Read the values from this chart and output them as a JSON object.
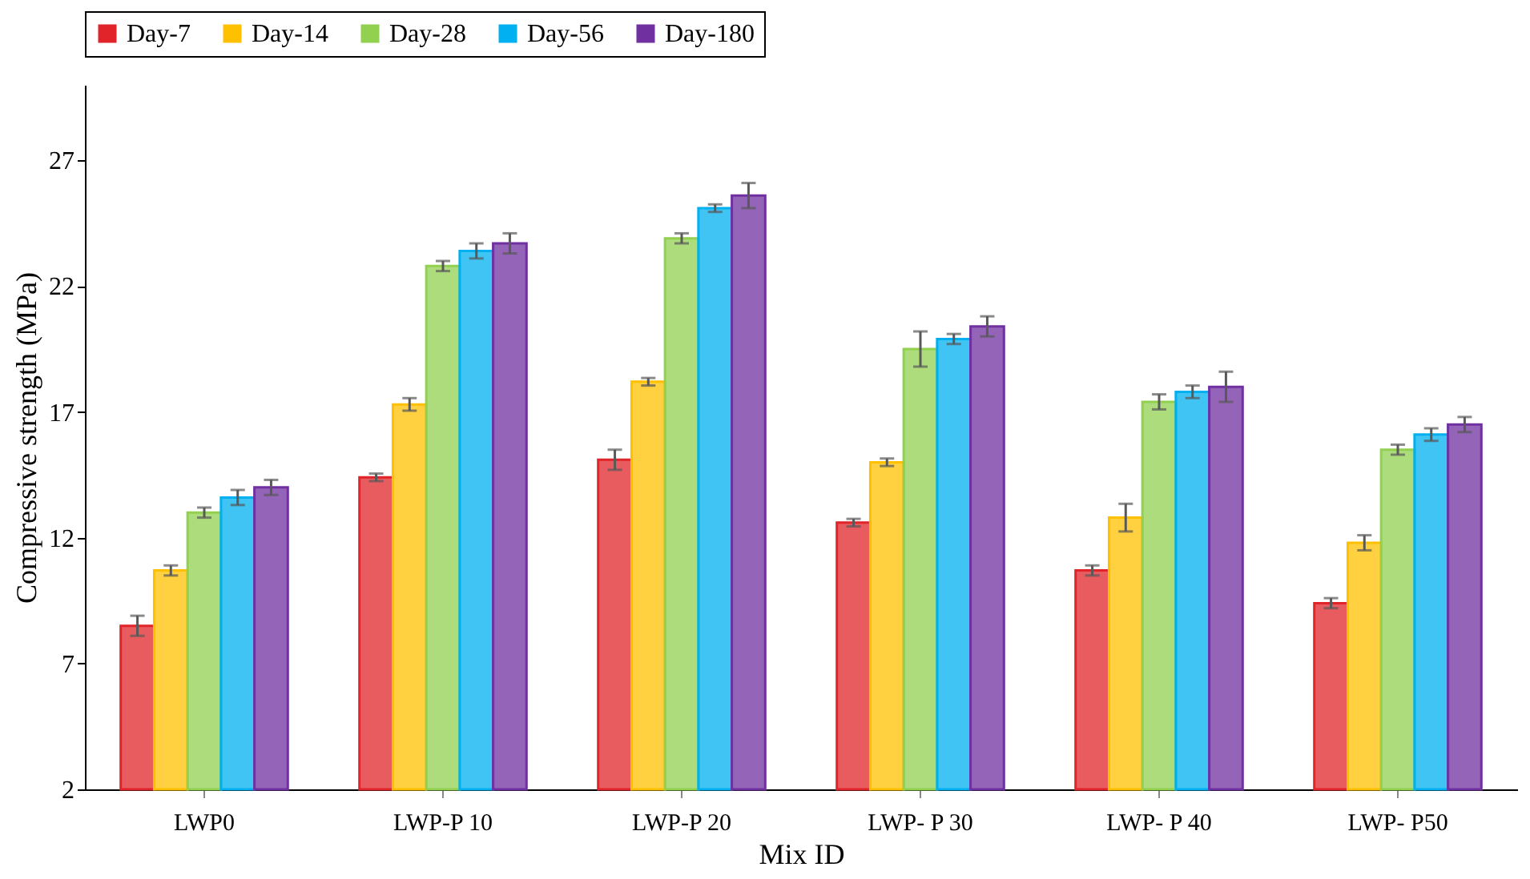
{
  "chart_data": {
    "type": "bar",
    "xlabel": "Mix ID",
    "ylabel": "Compressive strength (MPa)",
    "categories": [
      "LWP0",
      "LWP-P 10",
      "LWP-P 20",
      "LWP- P 30",
      "LWP- P 40",
      "LWP- P50"
    ],
    "series": [
      {
        "name": "Day-7",
        "color": "#e0242a",
        "values": [
          8.5,
          14.4,
          15.1,
          12.6,
          10.7,
          9.4
        ],
        "errors": [
          0.4,
          0.15,
          0.4,
          0.15,
          0.2,
          0.2
        ]
      },
      {
        "name": "Day-14",
        "color": "#ffc000",
        "values": [
          10.7,
          17.3,
          18.2,
          15.0,
          12.8,
          11.8
        ],
        "errors": [
          0.2,
          0.25,
          0.15,
          0.15,
          0.55,
          0.3
        ]
      },
      {
        "name": "Day-28",
        "color": "#92d050",
        "values": [
          13.0,
          22.8,
          23.9,
          19.5,
          17.4,
          15.5
        ],
        "errors": [
          0.2,
          0.2,
          0.2,
          0.7,
          0.3,
          0.2
        ]
      },
      {
        "name": "Day-56",
        "color": "#00b0f0",
        "values": [
          13.6,
          23.4,
          25.1,
          19.9,
          17.8,
          16.1
        ],
        "errors": [
          0.3,
          0.3,
          0.15,
          0.2,
          0.25,
          0.25
        ]
      },
      {
        "name": "Day-180",
        "color": "#7030a0",
        "values": [
          14.0,
          23.7,
          25.6,
          20.4,
          18.0,
          16.5
        ],
        "errors": [
          0.3,
          0.4,
          0.5,
          0.4,
          0.6,
          0.3
        ]
      }
    ],
    "ylim": [
      2,
      30
    ],
    "yticks": [
      2,
      7,
      12,
      17,
      22,
      27
    ],
    "grid": false,
    "legend": "top"
  }
}
